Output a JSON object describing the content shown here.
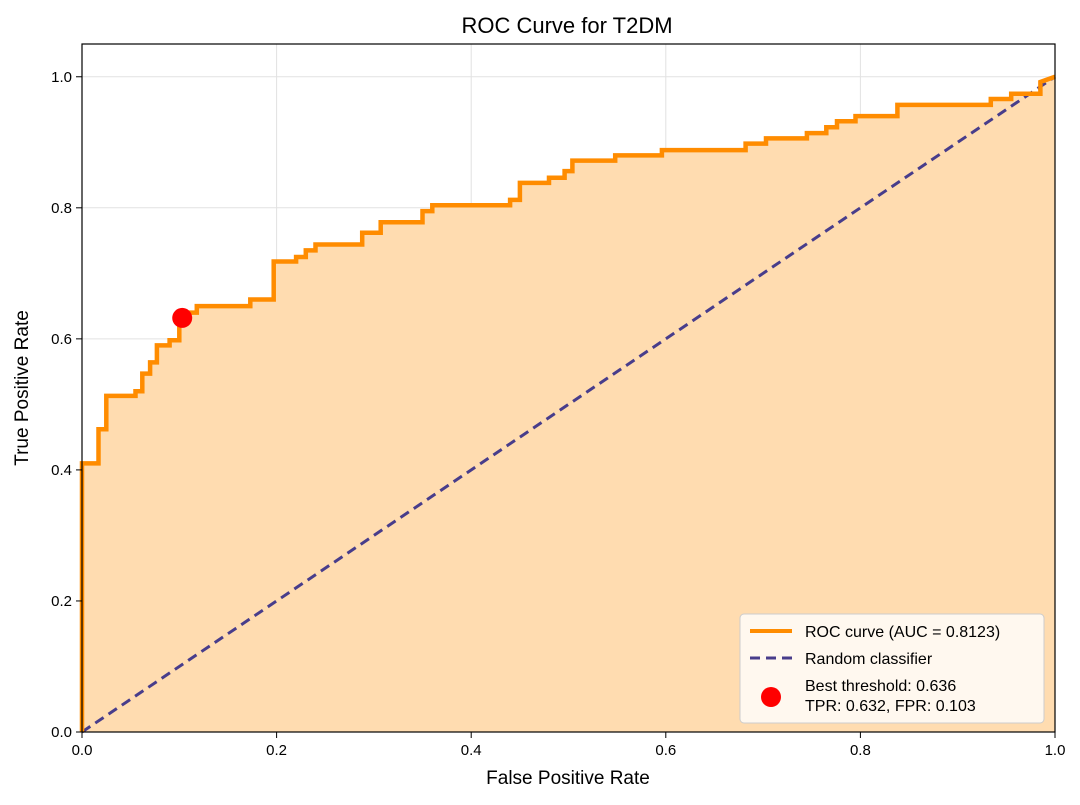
{
  "chart_data": {
    "type": "line",
    "title": "ROC Curve for T2DM",
    "xlabel": "False Positive Rate",
    "ylabel": "True Positive Rate",
    "xlim": [
      0.0,
      1.0
    ],
    "ylim": [
      0.0,
      1.05
    ],
    "x_ticks": [
      0.0,
      0.2,
      0.4,
      0.6,
      0.8,
      1.0
    ],
    "y_ticks": [
      0.0,
      0.2,
      0.4,
      0.6,
      0.8,
      1.0
    ],
    "x_tick_labels": [
      "0.0",
      "0.2",
      "0.4",
      "0.6",
      "0.8",
      "1.0"
    ],
    "y_tick_labels": [
      "0.0",
      "0.2",
      "0.4",
      "0.6",
      "0.8",
      "1.0"
    ],
    "grid": true,
    "legend_position": "lower-right",
    "series": [
      {
        "name": "ROC curve (AUC = 0.8123)",
        "style": "solid",
        "color": "#ff8c00",
        "fill_color": "#ffdcb0",
        "x": [
          0.0,
          0.0,
          0.017,
          0.017,
          0.025,
          0.025,
          0.055,
          0.055,
          0.062,
          0.062,
          0.07,
          0.07,
          0.077,
          0.077,
          0.09,
          0.09,
          0.1,
          0.1,
          0.11,
          0.11,
          0.118,
          0.118,
          0.173,
          0.173,
          0.197,
          0.197,
          0.22,
          0.22,
          0.23,
          0.23,
          0.24,
          0.24,
          0.288,
          0.288,
          0.307,
          0.307,
          0.35,
          0.35,
          0.36,
          0.36,
          0.44,
          0.44,
          0.45,
          0.45,
          0.48,
          0.48,
          0.496,
          0.496,
          0.504,
          0.504,
          0.548,
          0.548,
          0.596,
          0.596,
          0.682,
          0.682,
          0.703,
          0.703,
          0.745,
          0.745,
          0.765,
          0.765,
          0.776,
          0.776,
          0.795,
          0.795,
          0.838,
          0.838,
          0.934,
          0.934,
          0.955,
          0.955,
          0.985,
          0.985,
          1.0
        ],
        "y": [
          0.0,
          0.41,
          0.41,
          0.462,
          0.462,
          0.513,
          0.513,
          0.52,
          0.52,
          0.547,
          0.547,
          0.564,
          0.564,
          0.59,
          0.59,
          0.598,
          0.598,
          0.632,
          0.632,
          0.64,
          0.64,
          0.65,
          0.65,
          0.66,
          0.66,
          0.718,
          0.718,
          0.725,
          0.725,
          0.735,
          0.735,
          0.744,
          0.744,
          0.762,
          0.762,
          0.778,
          0.778,
          0.795,
          0.795,
          0.804,
          0.804,
          0.812,
          0.812,
          0.838,
          0.838,
          0.846,
          0.846,
          0.856,
          0.856,
          0.872,
          0.872,
          0.88,
          0.88,
          0.888,
          0.888,
          0.898,
          0.898,
          0.906,
          0.906,
          0.914,
          0.914,
          0.923,
          0.923,
          0.932,
          0.932,
          0.94,
          0.94,
          0.957,
          0.957,
          0.966,
          0.966,
          0.974,
          0.974,
          0.992,
          1.0
        ]
      },
      {
        "name": "Random classifier",
        "style": "dashed",
        "color": "#483d8b",
        "x": [
          0.0,
          1.0
        ],
        "y": [
          0.0,
          1.0
        ]
      }
    ],
    "best_point": {
      "label_line1": "Best threshold: 0.636",
      "label_line2": "TPR: 0.632, FPR: 0.103",
      "x": 0.103,
      "y": 0.632,
      "color": "#ff0000"
    }
  }
}
